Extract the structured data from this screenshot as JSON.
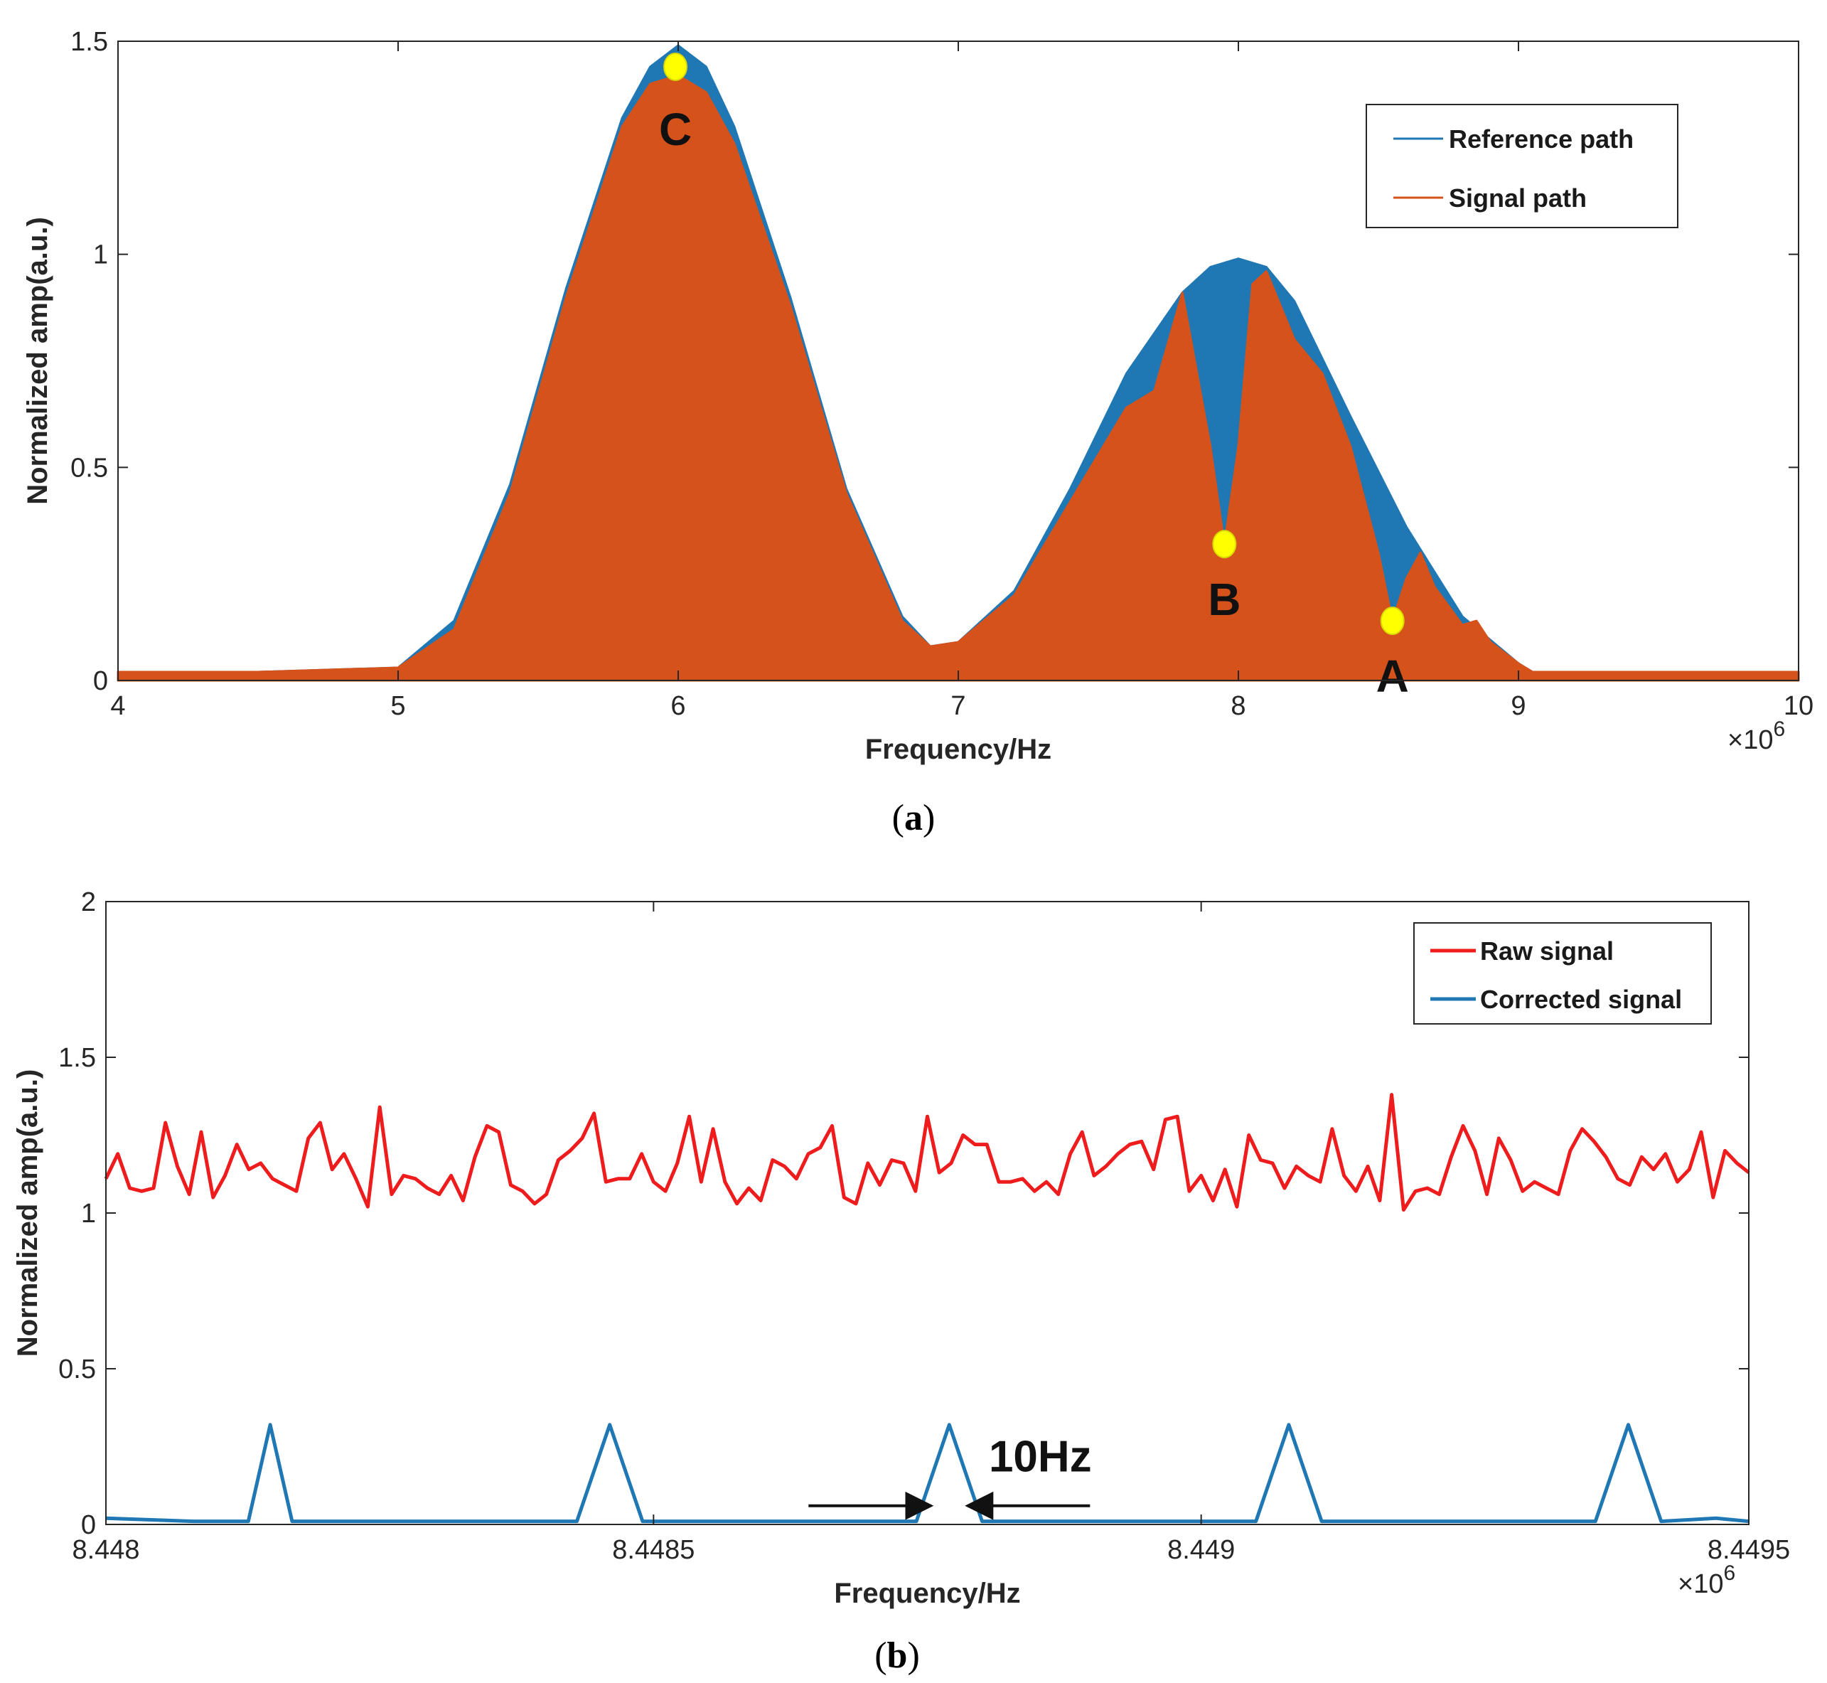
{
  "colors": {
    "reference": "#1f77b4",
    "signal": "#d6521b",
    "raw": "#ee1c1c",
    "corrected": "#1f77b4",
    "marker": "#ffff00"
  },
  "chart_data": [
    {
      "type": "area",
      "caption_letter": "a",
      "xlabel": "Frequency/Hz",
      "ylabel": "Normalized amp(a.u.)",
      "x_multiplier": "×10",
      "x_multiplier_exp": "6",
      "xlim": [
        4,
        10
      ],
      "ylim": [
        0,
        1.5
      ],
      "xticks": [
        4,
        5,
        6,
        7,
        8,
        9,
        10
      ],
      "xtick_labels": [
        "4",
        "5",
        "6",
        "7",
        "8",
        "9",
        "10"
      ],
      "yticks": [
        0,
        0.5,
        1,
        1.5
      ],
      "ytick_labels": [
        "0",
        "0.5",
        "1",
        "1.5"
      ],
      "legend": [
        "Reference path",
        "Signal path"
      ],
      "legend_position": "top-right",
      "series": [
        {
          "name": "Reference path",
          "x": [
            4,
            4.5,
            5,
            5.2,
            5.4,
            5.6,
            5.8,
            5.9,
            6,
            6.1,
            6.2,
            6.4,
            6.6,
            6.8,
            6.9,
            7,
            7.2,
            7.4,
            7.6,
            7.8,
            7.9,
            8,
            8.1,
            8.2,
            8.4,
            8.6,
            8.8,
            9,
            9.05,
            9.5,
            10
          ],
          "y": [
            0.02,
            0.02,
            0.03,
            0.14,
            0.46,
            0.92,
            1.32,
            1.44,
            1.49,
            1.44,
            1.3,
            0.9,
            0.45,
            0.15,
            0.08,
            0.09,
            0.21,
            0.45,
            0.72,
            0.91,
            0.97,
            0.99,
            0.97,
            0.89,
            0.62,
            0.36,
            0.15,
            0.04,
            0.02,
            0.02,
            0.02
          ]
        },
        {
          "name": "Signal path",
          "x": [
            4,
            4.5,
            5,
            5.2,
            5.4,
            5.6,
            5.8,
            5.9,
            6,
            6.1,
            6.2,
            6.4,
            6.6,
            6.8,
            6.9,
            7,
            7.2,
            7.4,
            7.6,
            7.7,
            7.8,
            7.9,
            7.95,
            8,
            8.05,
            8.1,
            8.2,
            8.3,
            8.4,
            8.5,
            8.55,
            8.6,
            8.65,
            8.7,
            8.8,
            8.85,
            8.9,
            9,
            9.05,
            9.5,
            10
          ],
          "y": [
            0.02,
            0.02,
            0.03,
            0.12,
            0.44,
            0.9,
            1.3,
            1.4,
            1.42,
            1.38,
            1.26,
            0.88,
            0.44,
            0.14,
            0.08,
            0.09,
            0.2,
            0.42,
            0.64,
            0.68,
            0.91,
            0.55,
            0.32,
            0.55,
            0.93,
            0.96,
            0.8,
            0.72,
            0.55,
            0.3,
            0.14,
            0.24,
            0.3,
            0.22,
            0.13,
            0.14,
            0.09,
            0.04,
            0.02,
            0.02,
            0.02
          ]
        }
      ],
      "markers": [
        {
          "label": "C",
          "x": 5.99,
          "y": 1.44
        },
        {
          "label": "B",
          "x": 7.95,
          "y": 0.32
        },
        {
          "label": "A",
          "x": 8.55,
          "y": 0.14
        }
      ]
    },
    {
      "type": "line",
      "caption_letter": "b",
      "xlabel": "Frequency/Hz",
      "ylabel": "Normalized amp(a.u.)",
      "x_multiplier": "×10",
      "x_multiplier_exp": "6",
      "xlim": [
        8.448,
        8.4495
      ],
      "ylim": [
        0,
        2
      ],
      "xticks": [
        8.448,
        8.4485,
        8.449,
        8.4495
      ],
      "xtick_labels": [
        "8.448",
        "8.4485",
        "8.449",
        "8.4495"
      ],
      "yticks": [
        0,
        0.5,
        1,
        1.5,
        2
      ],
      "ytick_labels": [
        "0",
        "0.5",
        "1",
        "1.5",
        "2"
      ],
      "legend": [
        "Raw signal",
        "Corrected signal"
      ],
      "legend_position": "top-right",
      "series": [
        {
          "name": "Raw signal",
          "values": [
            1.11,
            1.19,
            1.08,
            1.07,
            1.08,
            1.29,
            1.15,
            1.06,
            1.26,
            1.05,
            1.12,
            1.22,
            1.14,
            1.16,
            1.11,
            1.09,
            1.07,
            1.24,
            1.29,
            1.14,
            1.19,
            1.11,
            1.02,
            1.34,
            1.06,
            1.12,
            1.11,
            1.08,
            1.06,
            1.12,
            1.04,
            1.18,
            1.28,
            1.26,
            1.09,
            1.07,
            1.03,
            1.06,
            1.17,
            1.2,
            1.24,
            1.32,
            1.1,
            1.11,
            1.11,
            1.19,
            1.1,
            1.07,
            1.16,
            1.31,
            1.1,
            1.27,
            1.1,
            1.03,
            1.08,
            1.04,
            1.17,
            1.15,
            1.11,
            1.19,
            1.21,
            1.28,
            1.05,
            1.03,
            1.16,
            1.09,
            1.17,
            1.16,
            1.07,
            1.31,
            1.13,
            1.16,
            1.25,
            1.22,
            1.22,
            1.1,
            1.1,
            1.11,
            1.07,
            1.1,
            1.06,
            1.19,
            1.26,
            1.12,
            1.15,
            1.19,
            1.22,
            1.23,
            1.14,
            1.3,
            1.31,
            1.07,
            1.12,
            1.04,
            1.14,
            1.02,
            1.25,
            1.17,
            1.16,
            1.08,
            1.15,
            1.12,
            1.1,
            1.27,
            1.12,
            1.07,
            1.15,
            1.04,
            1.38,
            1.01,
            1.07,
            1.08,
            1.06,
            1.18,
            1.28,
            1.2,
            1.06,
            1.24,
            1.17,
            1.07,
            1.1,
            1.08,
            1.06,
            1.2,
            1.27,
            1.23,
            1.18,
            1.11,
            1.09,
            1.18,
            1.14,
            1.19,
            1.1,
            1.14,
            1.26,
            1.05,
            1.2,
            1.16,
            1.13
          ]
        },
        {
          "name": "Corrected signal",
          "x": [
            8.448,
            8.44808,
            8.44813,
            8.44815,
            8.44817,
            8.44822,
            8.4483,
            8.44838,
            8.44843,
            8.44846,
            8.44849,
            8.44854,
            8.44862,
            8.44869,
            8.44874,
            8.44877,
            8.4488,
            8.44885,
            8.44893,
            8.449,
            8.44905,
            8.44908,
            8.44911,
            8.44916,
            8.44924,
            8.44931,
            8.44936,
            8.44939,
            8.44942,
            8.44947,
            8.4495
          ],
          "y": [
            0.02,
            0.01,
            0.01,
            0.32,
            0.01,
            0.01,
            0.01,
            0.01,
            0.01,
            0.32,
            0.01,
            0.01,
            0.01,
            0.01,
            0.01,
            0.32,
            0.01,
            0.01,
            0.01,
            0.01,
            0.01,
            0.32,
            0.01,
            0.01,
            0.01,
            0.01,
            0.01,
            0.32,
            0.01,
            0.02,
            0.01
          ]
        }
      ],
      "annotation": {
        "text": "10Hz",
        "x_center": 8.44877,
        "y": 0.06
      }
    }
  ]
}
